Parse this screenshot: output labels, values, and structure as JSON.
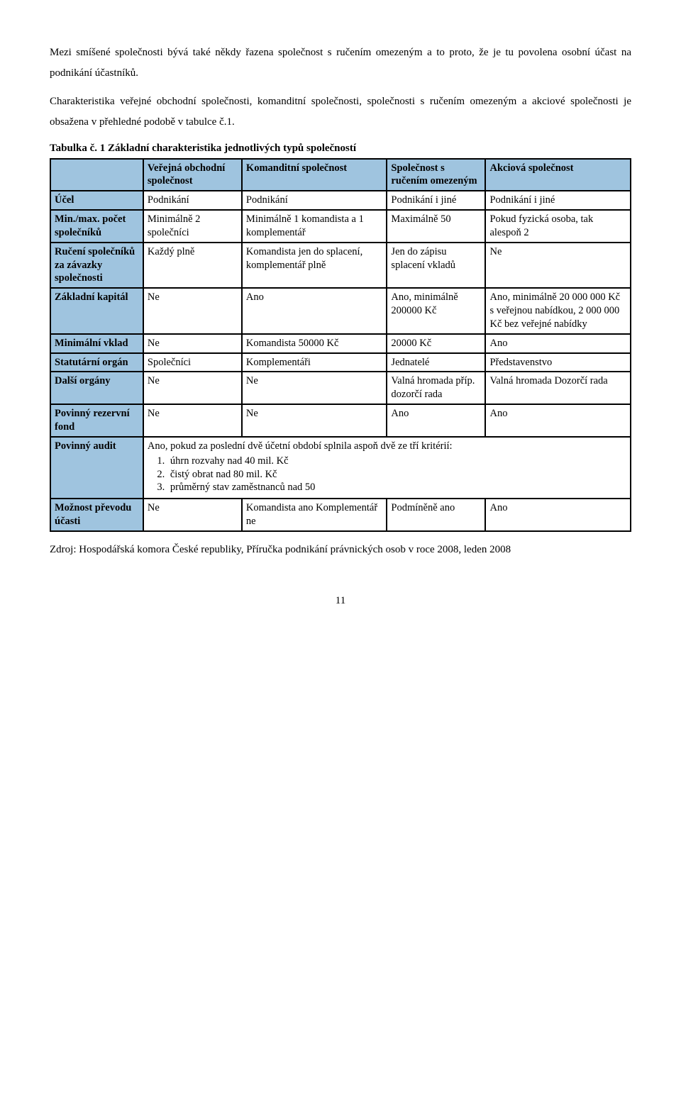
{
  "paragraph1": "Mezi smíšené  společnosti bývá také někdy řazena  společnost s ručením omezeným a to proto, že je tu povolena osobní účast na podnikání účastníků.",
  "paragraph2": "Charakteristika  veřejné  obchodní  společnosti,  komanditní  společnosti,  společnosti s ručením omezeným a akciové společnosti je obsažena v přehledné podobě v tabulce č.1.",
  "tableCaption": "Tabulka č. 1  Základní charakteristika jednotlivých typů společností",
  "headers": {
    "c1": "Veřejná obchodní společnost",
    "c2": "Komanditní společnost",
    "c3": "Společnost s ručením omezeným",
    "c4": "Akciová společnost"
  },
  "rows": {
    "ucel": {
      "label": "Účel",
      "c1": "Podnikání",
      "c2": "Podnikání",
      "c3": "Podnikání i jiné",
      "c4": "Podnikání i jiné"
    },
    "pocet": {
      "label": "Min./max. počet společníků",
      "c1": "Minimálně 2 společníci",
      "c2": "Minimálně 1 komandista a 1 komplementář",
      "c3": "Maximálně 50",
      "c4": "Pokud fyzická osoba, tak alespoň 2"
    },
    "ruceni": {
      "label": "Ručení společníků za závazky společnosti",
      "c1": "Každý plně",
      "c2": "Komandista jen do splacení, komplementář plně",
      "c3": "Jen do zápisu splacení vkladů",
      "c4": "Ne"
    },
    "kapital": {
      "label": "Základní kapitál",
      "c1": "Ne",
      "c2": "Ano",
      "c3": "Ano, minimálně 200000 Kč",
      "c4": "Ano, minimálně 20 000 000 Kč s veřejnou nabídkou, 2 000 000 Kč bez veřejné nabídky"
    },
    "minvklad": {
      "label": "Minimální vklad",
      "c1": "Ne",
      "c2": "Komandista 50000 Kč",
      "c3": "20000 Kč",
      "c4": "Ano"
    },
    "statutar": {
      "label": "Statutární orgán",
      "c1": "Společníci",
      "c2": "Komplementáři",
      "c3": "Jednatelé",
      "c4": "Představenstvo"
    },
    "dalsi": {
      "label": "Další orgány",
      "c1": "Ne",
      "c2": "Ne",
      "c3": "Valná hromada příp. dozorčí rada",
      "c4": "Valná hromada Dozorčí rada"
    },
    "rezfond": {
      "label": "Povinný rezervní fond",
      "c1": "Ne",
      "c2": "Ne",
      "c3": "Ano",
      "c4": "Ano"
    },
    "audit": {
      "label": "Povinný audit",
      "lead": "Ano, pokud za poslední dvě účetní období splnila aspoň dvě ze tří kritérií:",
      "li1": "úhrn rozvahy nad 40 mil. Kč",
      "li2": "čistý obrat nad 80 mil. Kč",
      "li3": "průměrný stav zaměstnanců nad 50"
    },
    "prevod": {
      "label": "Možnost převodu účasti",
      "c1": "Ne",
      "c2": "Komandista ano Komplementář ne",
      "c3": "Podmíněně ano",
      "c4": "Ano"
    }
  },
  "source": "Zdroj: Hospodářská komora České republiky, Příručka podnikání právnických osob v roce 2008, leden 2008",
  "pageNumber": "11",
  "style": {
    "header_bg": "#9fc4df",
    "border_color": "#000000",
    "page_bg": "#ffffff",
    "font_family": "Times New Roman",
    "body_fontsize_pt": 12,
    "col_widths_pct": [
      16,
      17,
      25,
      17,
      25
    ]
  }
}
